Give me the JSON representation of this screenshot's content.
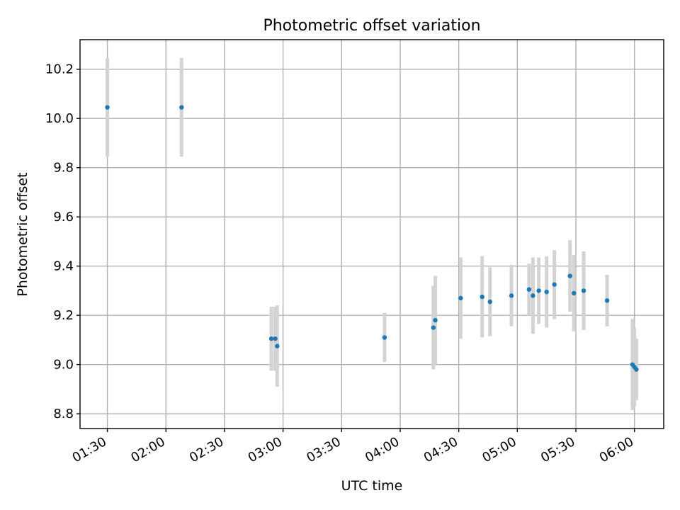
{
  "chart_data": {
    "type": "scatter",
    "title": "Photometric offset variation",
    "xlabel": "UTC time",
    "ylabel": "Photometric offset",
    "x_tick_labels": [
      "01:30",
      "02:00",
      "02:30",
      "03:00",
      "03:30",
      "04:00",
      "04:30",
      "05:00",
      "05:30",
      "06:00"
    ],
    "y_tick_labels": [
      "8.8",
      "9.0",
      "9.2",
      "9.4",
      "9.6",
      "9.8",
      "10.0",
      "10.2"
    ],
    "x_unit": "UTC time (HH:MM)",
    "xlim": [
      "01:16",
      "06:15"
    ],
    "ylim": [
      8.74,
      10.32
    ],
    "grid": true,
    "colors": {
      "point": "#1f77b4",
      "errorbar": "#d3d3d3"
    },
    "points": [
      {
        "x": "01:30",
        "y": 10.045,
        "err": 0.2
      },
      {
        "x": "02:08",
        "y": 10.045,
        "err": 0.2
      },
      {
        "x": "02:54",
        "y": 9.105,
        "err": 0.13
      },
      {
        "x": "02:56",
        "y": 9.105,
        "err": 0.13
      },
      {
        "x": "02:57",
        "y": 9.075,
        "err": 0.165
      },
      {
        "x": "03:52",
        "y": 9.11,
        "err": 0.1
      },
      {
        "x": "04:17",
        "y": 9.15,
        "err": 0.17
      },
      {
        "x": "04:18",
        "y": 9.18,
        "err": 0.18
      },
      {
        "x": "04:31",
        "y": 9.27,
        "err": 0.165
      },
      {
        "x": "04:42",
        "y": 9.275,
        "err": 0.165
      },
      {
        "x": "04:46",
        "y": 9.255,
        "err": 0.14
      },
      {
        "x": "04:57",
        "y": 9.28,
        "err": 0.125
      },
      {
        "x": "05:06",
        "y": 9.305,
        "err": 0.105
      },
      {
        "x": "05:08",
        "y": 9.28,
        "err": 0.155
      },
      {
        "x": "05:11",
        "y": 9.3,
        "err": 0.135
      },
      {
        "x": "05:15",
        "y": 9.295,
        "err": 0.145
      },
      {
        "x": "05:19",
        "y": 9.325,
        "err": 0.14
      },
      {
        "x": "05:27",
        "y": 9.36,
        "err": 0.145
      },
      {
        "x": "05:29",
        "y": 9.29,
        "err": 0.155
      },
      {
        "x": "05:34",
        "y": 9.3,
        "err": 0.16
      },
      {
        "x": "05:46",
        "y": 9.26,
        "err": 0.105
      },
      {
        "x": "05:59",
        "y": 9.0,
        "err": 0.185
      },
      {
        "x": "06:00",
        "y": 8.99,
        "err": 0.16
      },
      {
        "x": "06:01",
        "y": 8.98,
        "err": 0.125
      }
    ]
  }
}
